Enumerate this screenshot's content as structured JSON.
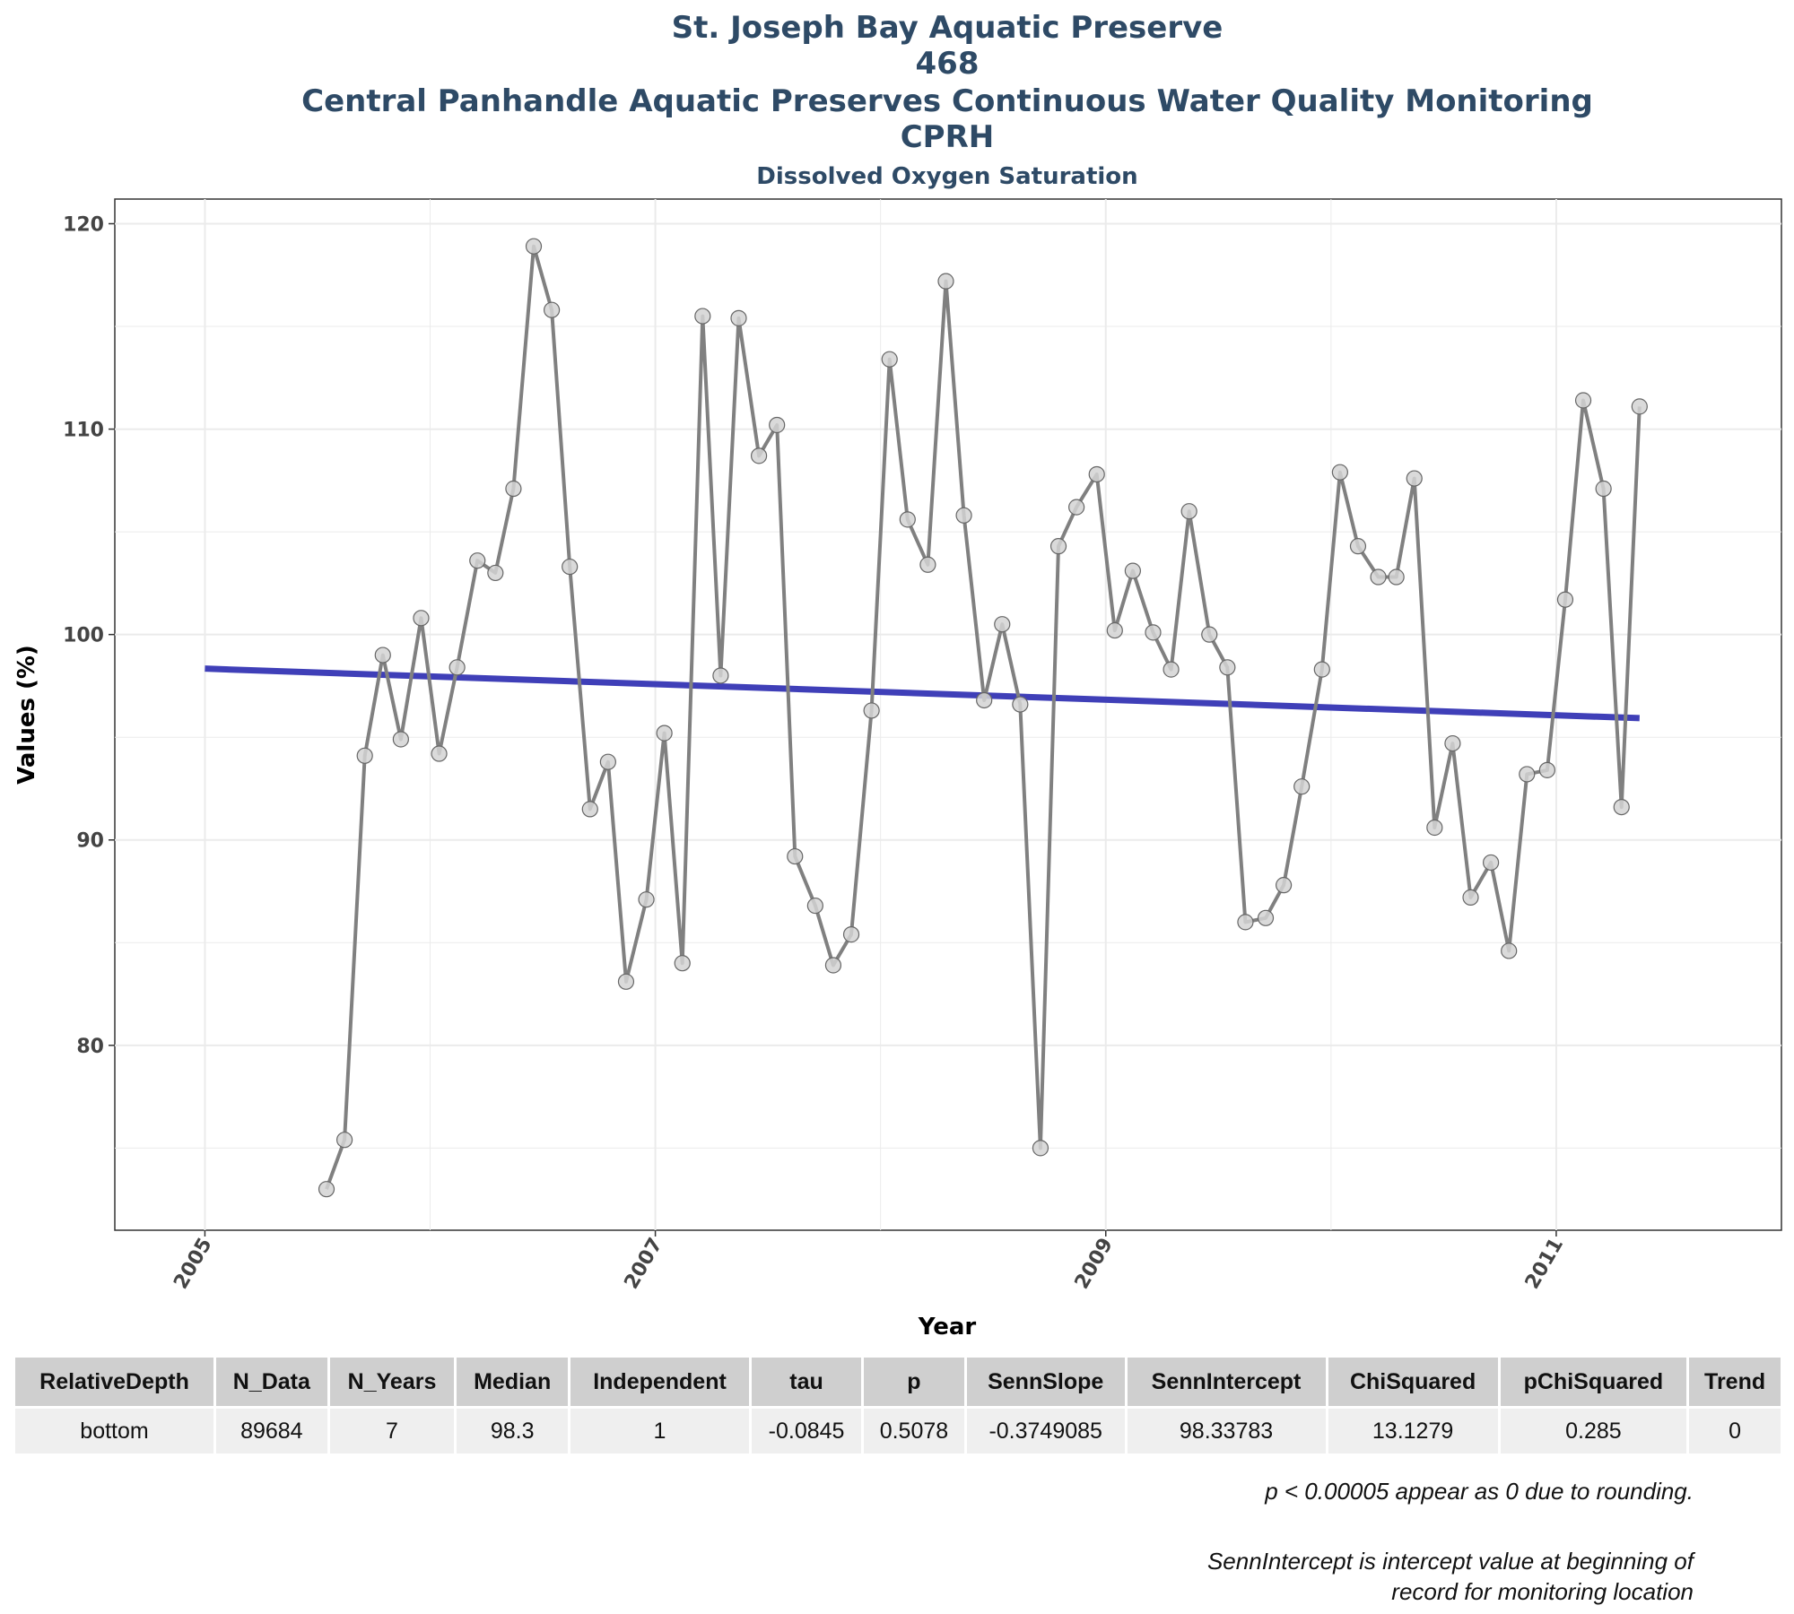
{
  "titles": {
    "line1": "St. Joseph Bay Aquatic Preserve",
    "line2": "468",
    "line3": "Central Panhandle Aquatic Preserves Continuous Water Quality Monitoring",
    "line4": "CPRH",
    "subtitle": "Dissolved Oxygen Saturation"
  },
  "chart_data": {
    "type": "line",
    "title": "St. Joseph Bay Aquatic Preserve",
    "subtitle": "Dissolved Oxygen Saturation",
    "xlabel": "Year",
    "ylabel": "Values (%)",
    "xlim": [
      2004.6,
      2012.0
    ],
    "ylim": [
      71.0,
      121.2
    ],
    "x_ticks": [
      2005,
      2007,
      2009,
      2011
    ],
    "y_ticks": [
      80,
      90,
      100,
      110,
      120
    ],
    "grid": true,
    "legend": "none",
    "colors": {
      "series": "#808080",
      "point_fill": "#d3d3d3",
      "trend": "#3f3fb8",
      "grid": "#ebebeb"
    },
    "series": [
      {
        "values": [
          [
            2005.54,
            73.0
          ],
          [
            2005.62,
            75.4
          ],
          [
            2005.71,
            94.1
          ],
          [
            2005.79,
            99.0
          ],
          [
            2005.87,
            94.9
          ],
          [
            2005.96,
            100.8
          ],
          [
            2006.04,
            94.2
          ],
          [
            2006.12,
            98.4
          ],
          [
            2006.21,
            103.6
          ],
          [
            2006.29,
            103.0
          ],
          [
            2006.37,
            107.1
          ],
          [
            2006.46,
            118.9
          ],
          [
            2006.54,
            115.8
          ],
          [
            2006.62,
            103.3
          ],
          [
            2006.71,
            91.5
          ],
          [
            2006.79,
            93.8
          ],
          [
            2006.87,
            83.1
          ],
          [
            2006.96,
            87.1
          ],
          [
            2007.04,
            95.2
          ],
          [
            2007.12,
            84.0
          ],
          [
            2007.21,
            115.5
          ],
          [
            2007.29,
            98.0
          ],
          [
            2007.37,
            115.4
          ],
          [
            2007.46,
            108.7
          ],
          [
            2007.54,
            110.2
          ],
          [
            2007.62,
            89.2
          ],
          [
            2007.71,
            86.8
          ],
          [
            2007.79,
            83.9
          ],
          [
            2007.87,
            85.4
          ],
          [
            2007.96,
            96.3
          ],
          [
            2008.04,
            113.4
          ],
          [
            2008.12,
            105.6
          ],
          [
            2008.21,
            103.4
          ],
          [
            2008.29,
            117.2
          ],
          [
            2008.37,
            105.8
          ],
          [
            2008.46,
            96.8
          ],
          [
            2008.54,
            100.5
          ],
          [
            2008.62,
            96.6
          ],
          [
            2008.71,
            75.0
          ],
          [
            2008.79,
            104.3
          ],
          [
            2008.87,
            106.2
          ],
          [
            2008.96,
            107.8
          ],
          [
            2009.04,
            100.2
          ],
          [
            2009.12,
            103.1
          ],
          [
            2009.21,
            100.1
          ],
          [
            2009.29,
            98.3
          ],
          [
            2009.37,
            106.0
          ],
          [
            2009.46,
            100.0
          ],
          [
            2009.54,
            98.4
          ],
          [
            2009.62,
            86.0
          ],
          [
            2009.71,
            86.2
          ],
          [
            2009.79,
            87.8
          ],
          [
            2009.87,
            92.6
          ],
          [
            2009.96,
            98.3
          ],
          [
            2010.04,
            107.9
          ],
          [
            2010.12,
            104.3
          ],
          [
            2010.21,
            102.8
          ],
          [
            2010.29,
            102.8
          ],
          [
            2010.37,
            107.6
          ],
          [
            2010.46,
            90.6
          ],
          [
            2010.54,
            94.7
          ],
          [
            2010.62,
            87.2
          ],
          [
            2010.71,
            88.9
          ],
          [
            2010.79,
            84.6
          ],
          [
            2010.87,
            93.2
          ],
          [
            2010.96,
            93.4
          ],
          [
            2011.04,
            101.7
          ],
          [
            2011.12,
            111.4
          ],
          [
            2011.21,
            107.1
          ],
          [
            2011.29,
            91.6
          ],
          [
            2011.37,
            111.1
          ]
        ]
      }
    ],
    "trend_line": {
      "x": [
        2005.0,
        2011.37
      ],
      "y": [
        98.34,
        95.93
      ]
    },
    "table": {
      "columns": [
        "RelativeDepth",
        "N_Data",
        "N_Years",
        "Median",
        "Independent",
        "tau",
        "p",
        "SennSlope",
        "SennIntercept",
        "ChiSquared",
        "pChiSquared",
        "Trend"
      ],
      "rows": [
        [
          "bottom",
          "89684",
          "7",
          "98.3",
          "1",
          "-0.0845",
          "0.5078",
          "-0.3749085",
          "98.33783",
          "13.1279",
          "0.285",
          "0"
        ]
      ]
    }
  },
  "footnotes": {
    "rounding": "p < 0.00005 appear as 0 due to rounding.",
    "intercept_line1": "SennIntercept is intercept value at beginning of",
    "intercept_line2": "record for monitoring location"
  }
}
